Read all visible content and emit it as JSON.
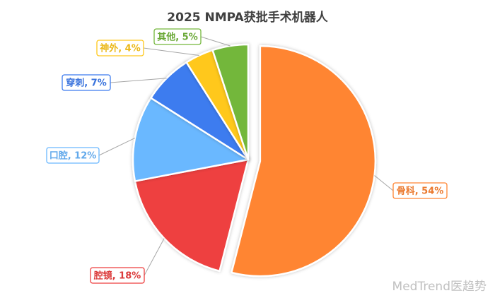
{
  "chart_data": {
    "type": "pie",
    "title": "2025 NMPA获批手术机器人",
    "slices": [
      {
        "label": "骨科, 54%",
        "value": 54,
        "color": "#FF8533",
        "exploded": true
      },
      {
        "label": "腔镜, 18%",
        "value": 18,
        "color": "#EE3F3F",
        "exploded": false
      },
      {
        "label": "口腔, 12%",
        "value": 12,
        "color": "#6BB8FF",
        "exploded": false
      },
      {
        "label": "穿刺, 7%",
        "value": 7,
        "color": "#3C7BEF",
        "exploded": false
      },
      {
        "label": "神外, 4%",
        "value": 4,
        "color": "#FFC81A",
        "exploded": false
      },
      {
        "label": "其他, 5%",
        "value": 5,
        "color": "#73B73B",
        "exploded": false
      }
    ]
  },
  "watermark": "MedTrend医趋势"
}
